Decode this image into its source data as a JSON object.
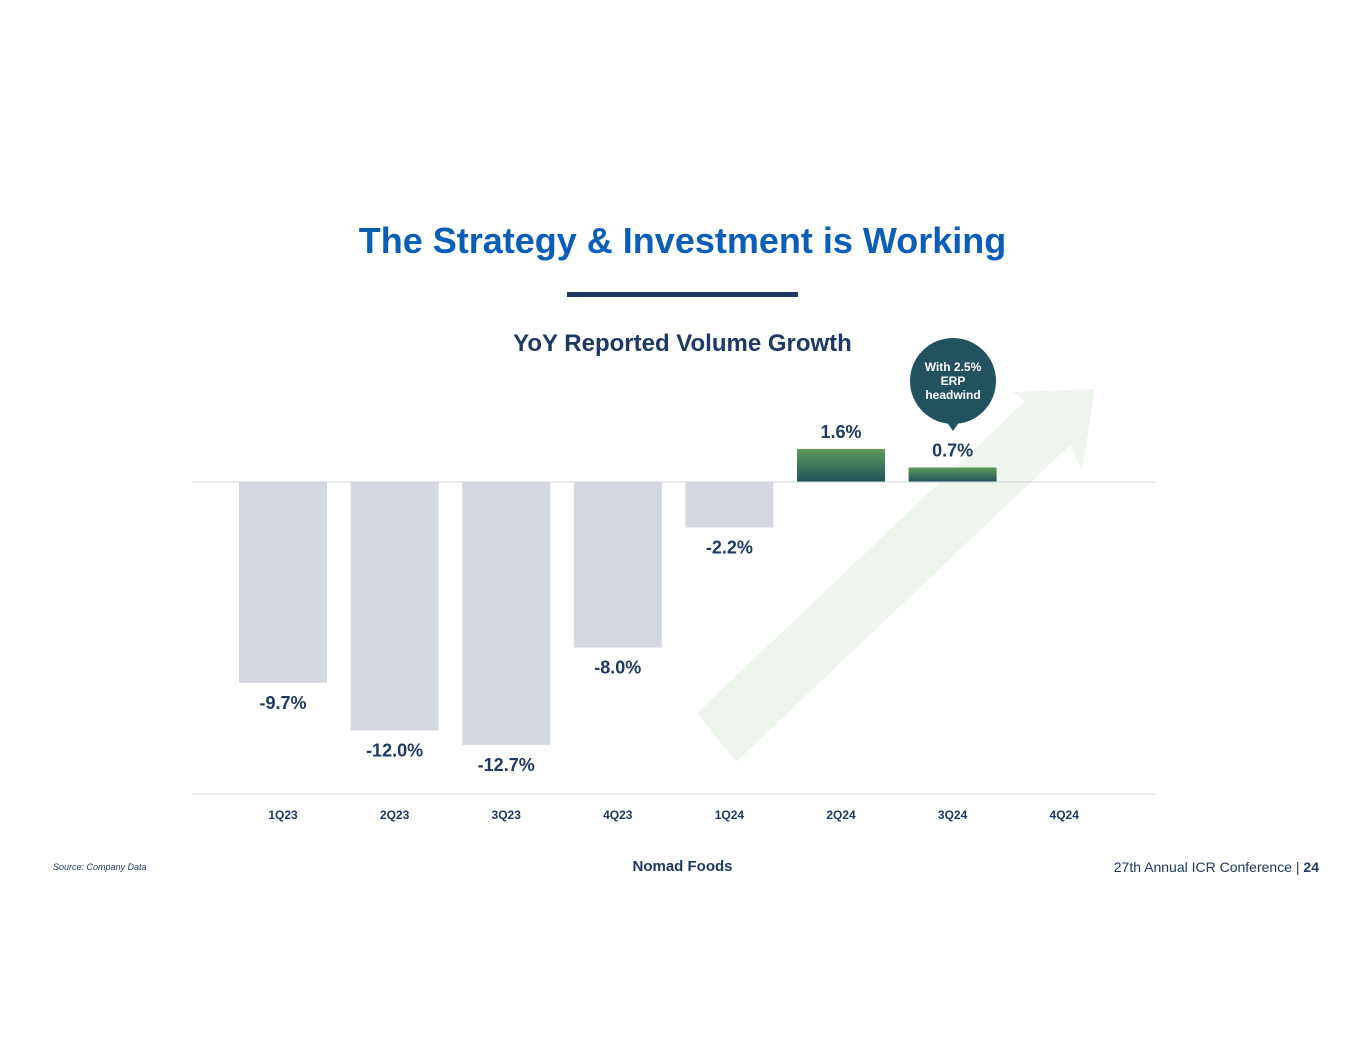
{
  "slide": {
    "title": "The Strategy & Investment is Working",
    "source": "Source: Company Data",
    "brand": "Nomad Foods",
    "conference": "27th Annual ICR Conference |",
    "page_number": "24"
  },
  "callout": {
    "line1": "With 2.5%",
    "line2": "ERP",
    "line3": "headwind"
  },
  "colors": {
    "title": "#0a5eb7",
    "text": "#1f3864",
    "negative_bar": "#d4d9e1",
    "positive_bar_top": "#5e9b5a",
    "positive_bar_bottom": "#22525e",
    "arrow": "#eef5ed",
    "callout": "#22525e"
  },
  "chart_data": {
    "type": "bar",
    "title": "YoY Reported Volume Growth",
    "categories": [
      "1Q23",
      "2Q23",
      "3Q23",
      "4Q23",
      "1Q24",
      "2Q24",
      "3Q24",
      "4Q24"
    ],
    "values": [
      -9.7,
      -12.0,
      -12.7,
      -8.0,
      -2.2,
      1.6,
      0.7,
      null
    ],
    "labels": [
      "-9.7%",
      "-12.0%",
      "-12.7%",
      "-8.0%",
      "-2.2%",
      "1.6%",
      "0.7%",
      ""
    ],
    "unit": "%",
    "ylim": [
      -15,
      2
    ],
    "grid": false,
    "legend": "none"
  }
}
